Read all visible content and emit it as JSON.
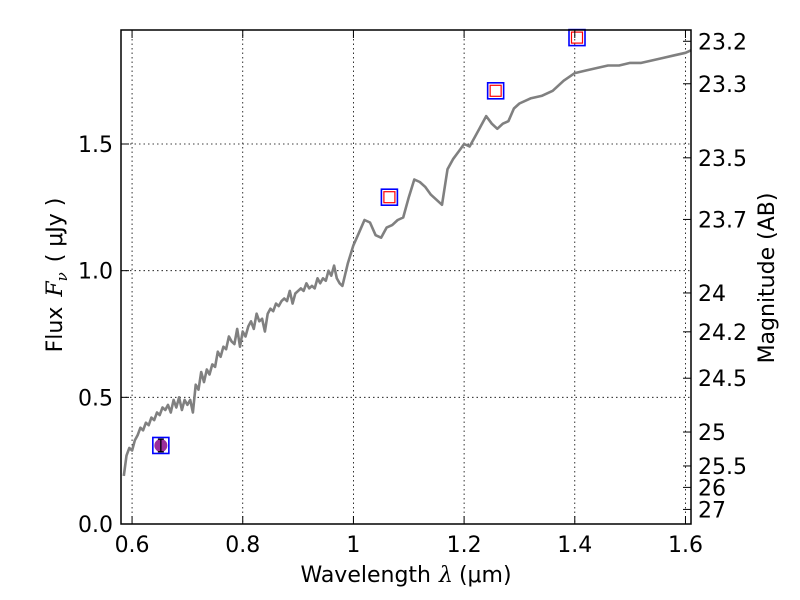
{
  "chart_data": {
    "type": "line",
    "xlabel_text": "Wavelength",
    "xlabel_symbol": "λ",
    "xlabel_unit": "(μm)",
    "ylabel_text": "Flux",
    "ylabel_symbol": "F",
    "ylabel_sub": "ν",
    "ylabel_unit": "( μJy )",
    "y2label": "Magnitude (AB)",
    "xlim": [
      0.58,
      1.61
    ],
    "ylim": [
      0.0,
      1.95
    ],
    "x_ticks": [
      {
        "value": 0.6,
        "label": "0.6"
      },
      {
        "value": 0.8,
        "label": "0.8"
      },
      {
        "value": 1.0,
        "label": "1"
      },
      {
        "value": 1.2,
        "label": "1.2"
      },
      {
        "value": 1.4,
        "label": "1.4"
      },
      {
        "value": 1.6,
        "label": "1.6"
      }
    ],
    "y_ticks": [
      {
        "value": 0.0,
        "label": "0.0"
      },
      {
        "value": 0.5,
        "label": "0.5"
      },
      {
        "value": 1.0,
        "label": "1.0"
      },
      {
        "value": 1.5,
        "label": "1.5"
      }
    ],
    "y2_ticks": [
      {
        "value": 23.2,
        "label": "23.2"
      },
      {
        "value": 23.3,
        "label": "23.3"
      },
      {
        "value": 23.5,
        "label": "23.5"
      },
      {
        "value": 23.7,
        "label": "23.7"
      },
      {
        "value": 24,
        "label": "24"
      },
      {
        "value": 24.2,
        "label": "24.2"
      },
      {
        "value": 24.5,
        "label": "24.5"
      },
      {
        "value": 25,
        "label": "25"
      },
      {
        "value": 25.5,
        "label": "25.5"
      },
      {
        "value": 26,
        "label": "26"
      },
      {
        "value": 27,
        "label": "27"
      }
    ],
    "grid": true,
    "model_spectrum": {
      "color": "#808080",
      "x": [
        0.585,
        0.59,
        0.595,
        0.6,
        0.605,
        0.61,
        0.615,
        0.62,
        0.625,
        0.63,
        0.635,
        0.64,
        0.645,
        0.65,
        0.655,
        0.66,
        0.665,
        0.67,
        0.675,
        0.68,
        0.685,
        0.69,
        0.695,
        0.7,
        0.705,
        0.71,
        0.715,
        0.72,
        0.725,
        0.73,
        0.735,
        0.74,
        0.745,
        0.75,
        0.755,
        0.76,
        0.765,
        0.77,
        0.775,
        0.78,
        0.785,
        0.79,
        0.795,
        0.8,
        0.805,
        0.81,
        0.815,
        0.82,
        0.825,
        0.83,
        0.835,
        0.84,
        0.845,
        0.85,
        0.855,
        0.86,
        0.865,
        0.87,
        0.875,
        0.88,
        0.885,
        0.89,
        0.895,
        0.9,
        0.905,
        0.91,
        0.915,
        0.92,
        0.925,
        0.93,
        0.935,
        0.94,
        0.945,
        0.95,
        0.955,
        0.96,
        0.965,
        0.97,
        0.975,
        0.98,
        0.99,
        1.0,
        1.01,
        1.02,
        1.03,
        1.04,
        1.05,
        1.06,
        1.07,
        1.08,
        1.09,
        1.1,
        1.11,
        1.12,
        1.13,
        1.14,
        1.15,
        1.16,
        1.17,
        1.18,
        1.19,
        1.2,
        1.21,
        1.22,
        1.23,
        1.24,
        1.25,
        1.26,
        1.27,
        1.28,
        1.29,
        1.3,
        1.32,
        1.34,
        1.36,
        1.38,
        1.4,
        1.42,
        1.44,
        1.46,
        1.48,
        1.5,
        1.52,
        1.54,
        1.56,
        1.58,
        1.6,
        1.61
      ],
      "y": [
        0.19,
        0.27,
        0.3,
        0.29,
        0.33,
        0.35,
        0.38,
        0.37,
        0.4,
        0.39,
        0.42,
        0.41,
        0.44,
        0.43,
        0.46,
        0.45,
        0.47,
        0.44,
        0.49,
        0.46,
        0.5,
        0.45,
        0.49,
        0.47,
        0.49,
        0.44,
        0.55,
        0.53,
        0.6,
        0.56,
        0.61,
        0.59,
        0.63,
        0.62,
        0.68,
        0.66,
        0.7,
        0.69,
        0.74,
        0.72,
        0.71,
        0.77,
        0.7,
        0.76,
        0.74,
        0.78,
        0.8,
        0.77,
        0.83,
        0.8,
        0.81,
        0.76,
        0.83,
        0.85,
        0.84,
        0.87,
        0.86,
        0.88,
        0.89,
        0.88,
        0.92,
        0.87,
        0.91,
        0.92,
        0.93,
        0.92,
        0.95,
        0.93,
        0.94,
        0.93,
        0.97,
        0.95,
        0.97,
        0.96,
        1.0,
        0.98,
        1.02,
        0.97,
        0.95,
        0.94,
        1.03,
        1.1,
        1.15,
        1.2,
        1.19,
        1.14,
        1.13,
        1.17,
        1.18,
        1.2,
        1.21,
        1.29,
        1.36,
        1.35,
        1.33,
        1.3,
        1.28,
        1.26,
        1.4,
        1.44,
        1.47,
        1.5,
        1.49,
        1.53,
        1.57,
        1.61,
        1.58,
        1.56,
        1.58,
        1.59,
        1.64,
        1.66,
        1.68,
        1.69,
        1.71,
        1.75,
        1.78,
        1.79,
        1.8,
        1.81,
        1.81,
        1.82,
        1.82,
        1.83,
        1.84,
        1.85,
        1.86,
        1.87
      ]
    },
    "observations": [
      {
        "x": 0.652,
        "y": 0.31,
        "yerr": 0.025,
        "kind": "detection"
      },
      {
        "x": 1.065,
        "y": 1.29,
        "kind": "model"
      },
      {
        "x": 1.257,
        "y": 1.71,
        "kind": "model"
      },
      {
        "x": 1.404,
        "y": 1.92,
        "kind": "model"
      }
    ],
    "colors": {
      "spectrum": "#808080",
      "outer_marker": "#0000ff",
      "inner_marker": "#ff0000",
      "detection_fill": "#9b2d9b",
      "grid": "#000000"
    }
  }
}
